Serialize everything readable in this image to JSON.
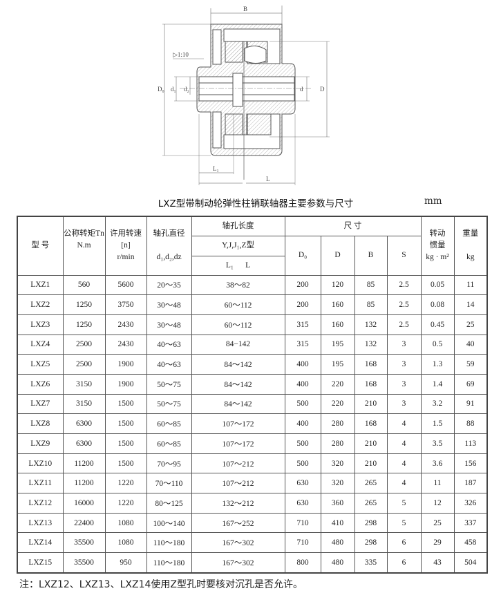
{
  "drawing": {
    "labels": {
      "B": "B",
      "taper": "▷1:10",
      "D0": "D₀",
      "d1": "d₁",
      "dz": "d₂",
      "d": "d",
      "D": "D",
      "L1": "L₁",
      "L": "L"
    }
  },
  "title": "LXZ型带制动轮弹性柱销联轴器主要参数与尺寸",
  "unit": "mm",
  "table": {
    "headers": {
      "model": "型 号",
      "torque": "公称转矩Tn",
      "torque_unit": "N.m",
      "speed": "许用转速",
      "speed_sym": "[n]",
      "speed_unit": "r/min",
      "bore_dia": "轴孔直径",
      "bore_dia_sym": "d₁,d₂,dz",
      "bore_len": "轴孔长度",
      "bore_type": "Y,J,J₁,Z型",
      "bore_len_sym": "L₁      L",
      "dims": "尺    寸",
      "D0": "D₀",
      "D": "D",
      "B": "B",
      "S": "S",
      "inertia": "转动",
      "inertia2": "惯量",
      "inertia_unit": "kg · m²",
      "weight": "重量",
      "weight_unit": "kg"
    },
    "rows": [
      [
        "LXZ1",
        "560",
        "5600",
        "20～35",
        "38～82",
        "200",
        "120",
        "85",
        "2.5",
        "0.05",
        "11"
      ],
      [
        "LXZ2",
        "1250",
        "3750",
        "30～48",
        "60～112",
        "200",
        "160",
        "85",
        "2.5",
        "0.08",
        "14"
      ],
      [
        "LXZ3",
        "1250",
        "2430",
        "30～48",
        "60～112",
        "315",
        "160",
        "132",
        "2.5",
        "0.45",
        "25"
      ],
      [
        "LXZ4",
        "2500",
        "2430",
        "40～63",
        "84−142",
        "315",
        "195",
        "132",
        "3",
        "0.5",
        "40"
      ],
      [
        "LXZ5",
        "2500",
        "1900",
        "40～63",
        "84～142",
        "400",
        "195",
        "168",
        "3",
        "1.3",
        "59"
      ],
      [
        "LXZ6",
        "3150",
        "1900",
        "50～75",
        "84～142",
        "400",
        "220",
        "168",
        "3",
        "1.4",
        "69"
      ],
      [
        "LXZ7",
        "3150",
        "1500",
        "50～75",
        "84～142",
        "500",
        "220",
        "210",
        "3",
        "3.2",
        "91"
      ],
      [
        "LXZ8",
        "6300",
        "1500",
        "60～85",
        "107～172",
        "400",
        "280",
        "168",
        "4",
        "1.5",
        "88"
      ],
      [
        "LXZ9",
        "6300",
        "1500",
        "60～85",
        "107～172",
        "500",
        "280",
        "210",
        "4",
        "3.5",
        "113"
      ],
      [
        "LXZ10",
        "11200",
        "1500",
        "70～95",
        "107～212",
        "500",
        "320",
        "210",
        "4",
        "3.6",
        "156"
      ],
      [
        "LXZ11",
        "11200",
        "1220",
        "70～110",
        "107～212",
        "630",
        "320",
        "265",
        "4",
        "11",
        "187"
      ],
      [
        "LXZ12",
        "16000",
        "1220",
        "80～125",
        "132～212",
        "630",
        "360",
        "265",
        "5",
        "12",
        "326"
      ],
      [
        "LXZ13",
        "22400",
        "1080",
        "100～140",
        "167～252",
        "710",
        "410",
        "298",
        "5",
        "25",
        "337"
      ],
      [
        "LXZ14",
        "35500",
        "1080",
        "110～180",
        "167～302",
        "710",
        "480",
        "298",
        "6",
        "29",
        "458"
      ],
      [
        "LXZ15",
        "35500",
        "950",
        "110～180",
        "167～302",
        "800",
        "480",
        "335",
        "6",
        "43",
        "504"
      ]
    ]
  },
  "note": "注：LXZ12、LXZ13、LXZ14使用Z型孔时要核对沉孔是否允许。"
}
